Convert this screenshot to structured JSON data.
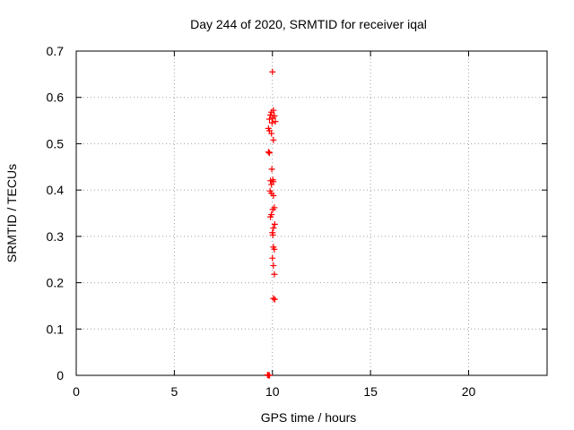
{
  "chart_data": {
    "type": "scatter",
    "title": "Day 244 of 2020, SRMTID for receiver iqal",
    "xlabel": "GPS time / hours",
    "ylabel": "SRMTID / TECUs",
    "xlim": [
      0,
      24
    ],
    "ylim": [
      0,
      0.7
    ],
    "x_ticks": [
      "0",
      "5",
      "10",
      "15",
      "20"
    ],
    "y_ticks": [
      "0",
      "0.1",
      "0.2",
      "0.3",
      "0.4",
      "0.5",
      "0.6",
      "0.7"
    ],
    "grid": true,
    "marker": "plus",
    "color": "#ff0000",
    "series": [
      {
        "points": [
          [
            10.0,
            0.655
          ],
          [
            9.95,
            0.568
          ],
          [
            10.05,
            0.572
          ],
          [
            9.9,
            0.562
          ],
          [
            10.1,
            0.56
          ],
          [
            10.02,
            0.556
          ],
          [
            9.85,
            0.553
          ],
          [
            10.15,
            0.548
          ],
          [
            9.98,
            0.545
          ],
          [
            9.8,
            0.533
          ],
          [
            9.85,
            0.528
          ],
          [
            9.95,
            0.522
          ],
          [
            10.05,
            0.508
          ],
          [
            9.8,
            0.482
          ],
          [
            9.85,
            0.48
          ],
          [
            9.97,
            0.445
          ],
          [
            10.02,
            0.422
          ],
          [
            9.9,
            0.42
          ],
          [
            10.05,
            0.418
          ],
          [
            9.95,
            0.412
          ],
          [
            9.88,
            0.398
          ],
          [
            9.95,
            0.393
          ],
          [
            10.05,
            0.388
          ],
          [
            10.1,
            0.362
          ],
          [
            10.02,
            0.358
          ],
          [
            9.95,
            0.347
          ],
          [
            9.9,
            0.342
          ],
          [
            10.12,
            0.326
          ],
          [
            10.05,
            0.318
          ],
          [
            10.0,
            0.308
          ],
          [
            10.02,
            0.303
          ],
          [
            10.05,
            0.277
          ],
          [
            10.1,
            0.272
          ],
          [
            10.0,
            0.253
          ],
          [
            10.05,
            0.237
          ],
          [
            10.1,
            0.218
          ],
          [
            10.05,
            0.166
          ],
          [
            10.12,
            0.164
          ],
          [
            9.75,
            0.001
          ],
          [
            9.8,
            0.0
          ],
          [
            9.85,
            0.0
          ]
        ]
      }
    ]
  }
}
